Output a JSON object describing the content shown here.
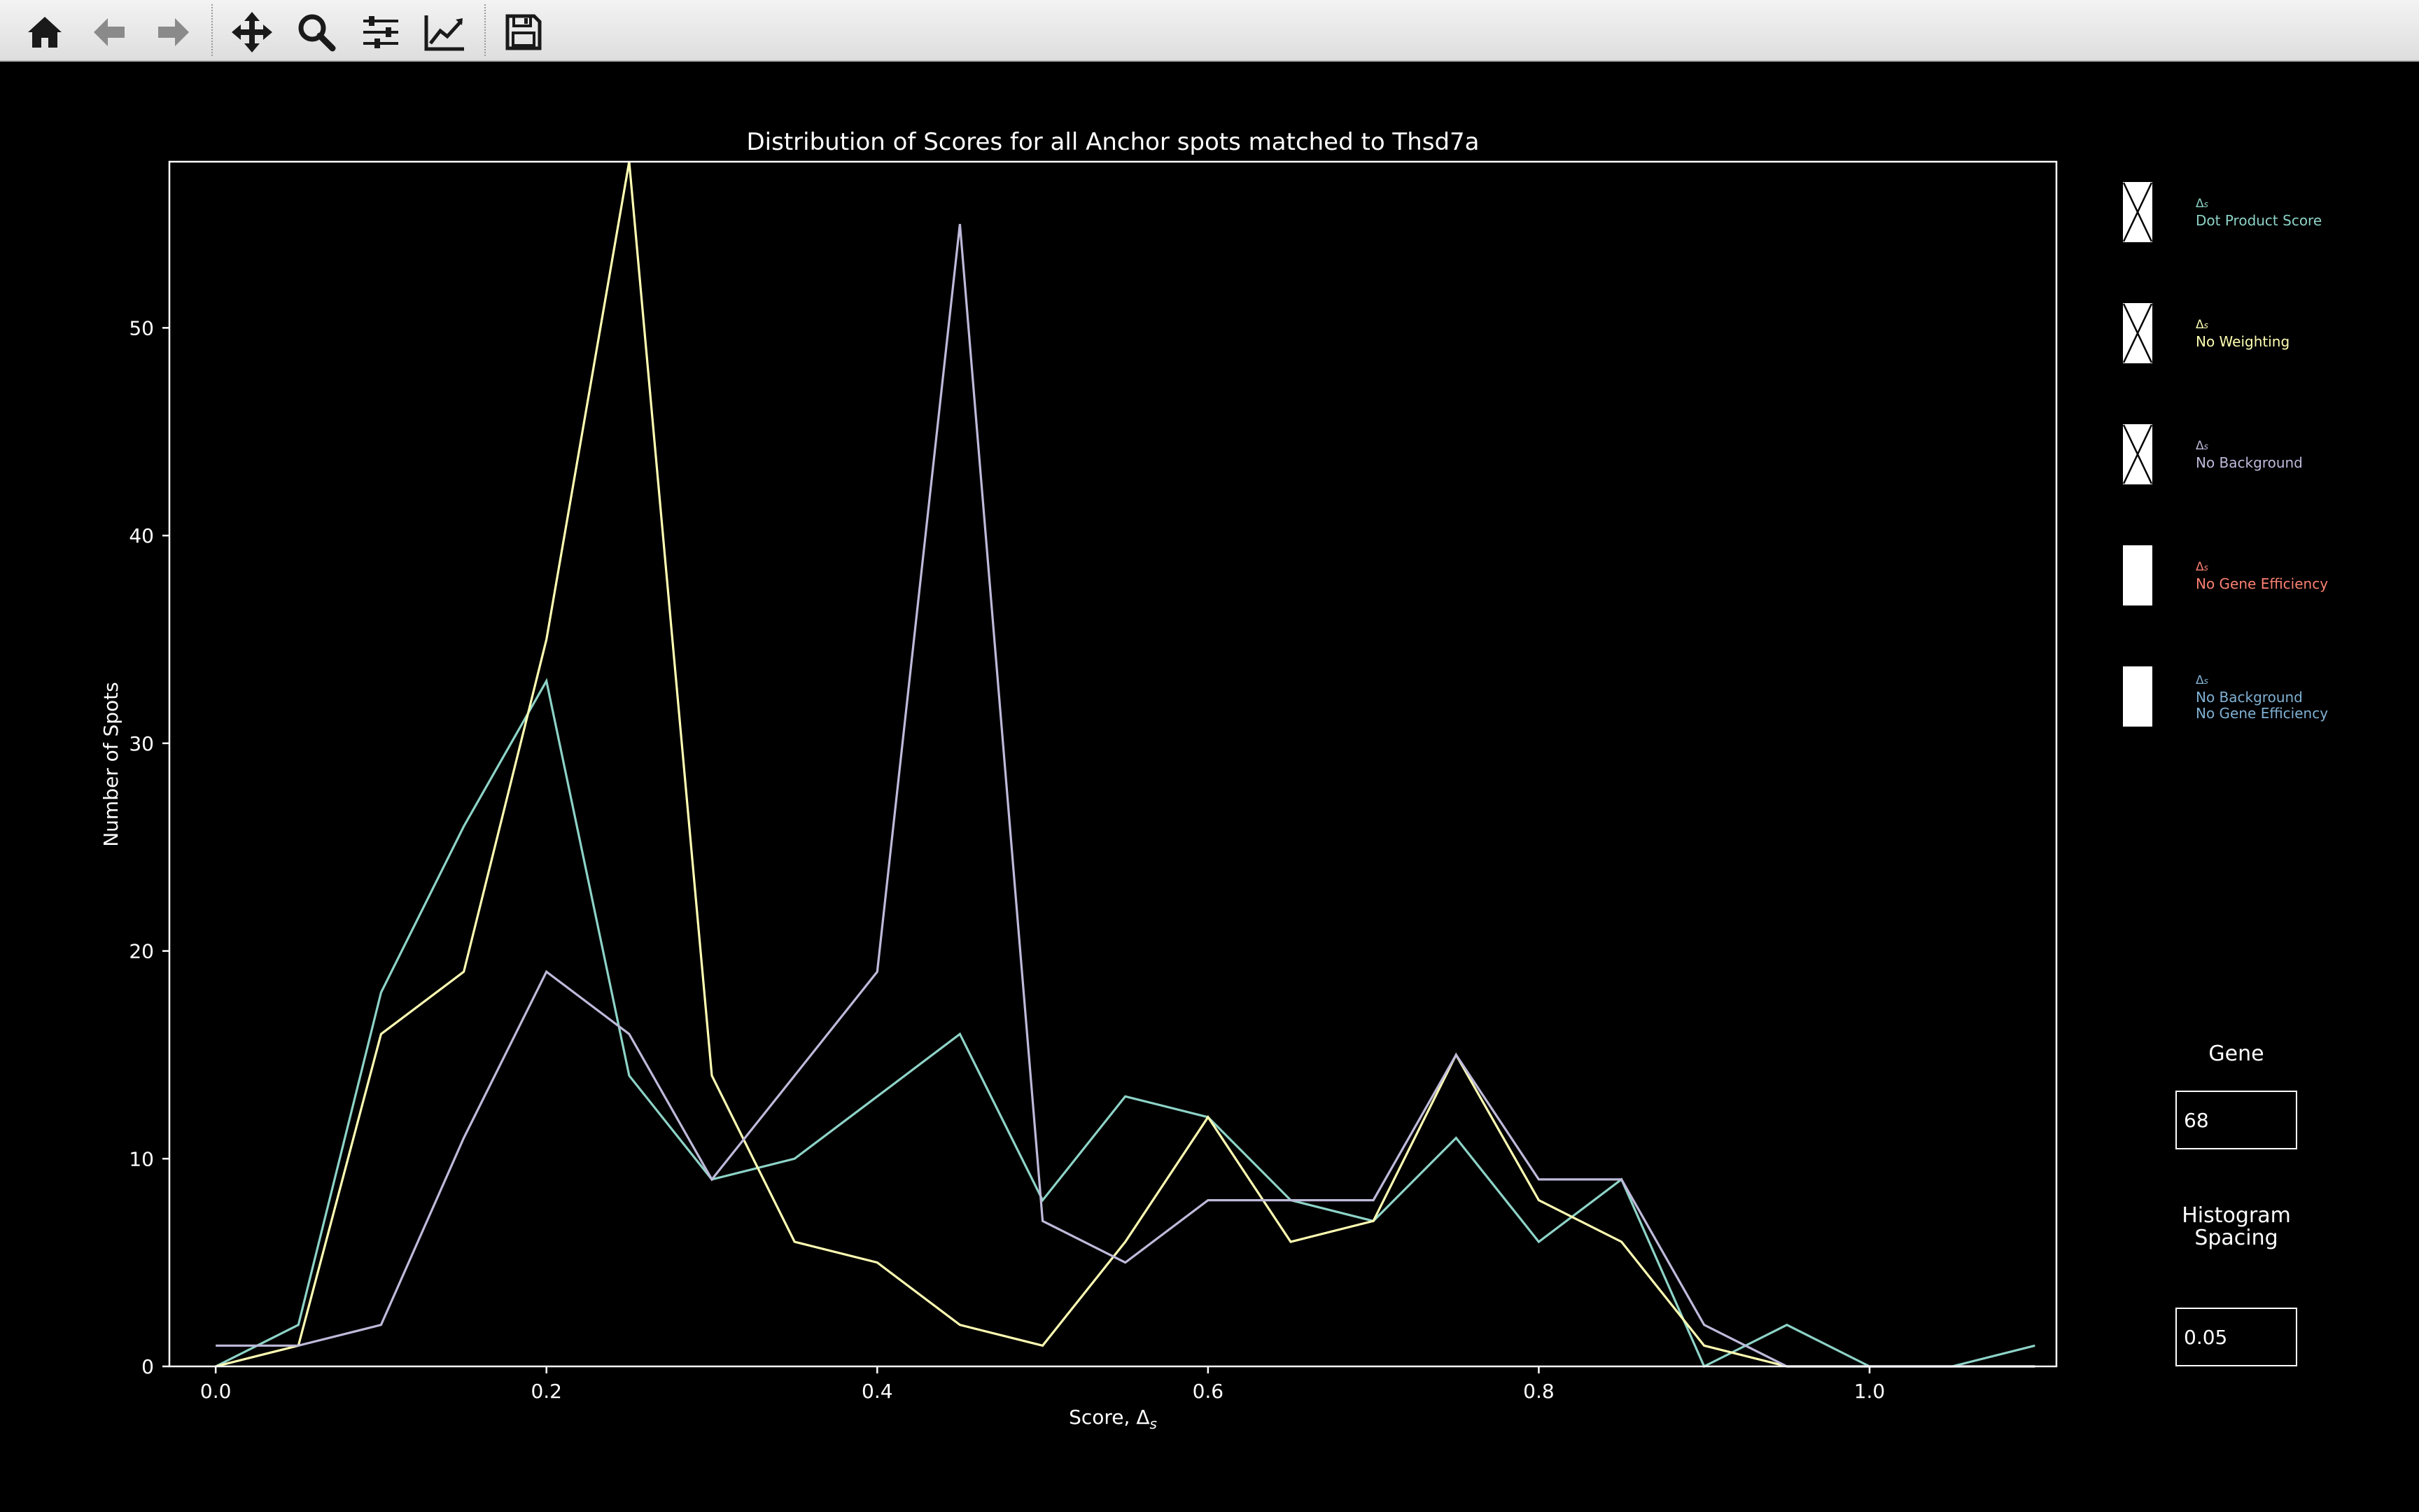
{
  "toolbar": {
    "buttons": [
      {
        "name": "home-icon",
        "label": "Home"
      },
      {
        "name": "back-icon",
        "label": "Back"
      },
      {
        "name": "forward-icon",
        "label": "Forward"
      },
      {
        "name": "pan-icon",
        "label": "Pan"
      },
      {
        "name": "zoom-icon",
        "label": "Zoom"
      },
      {
        "name": "configure-subplots-icon",
        "label": "Subplots"
      },
      {
        "name": "edit-axis-icon",
        "label": "Customize"
      },
      {
        "name": "save-icon",
        "label": "Save"
      }
    ],
    "icon_color": "#1a1a1a",
    "disabled_color": "#8a8a8a"
  },
  "chart_data": {
    "type": "line",
    "title": "Distribution of Scores for all Anchor spots matched to Thsd7a",
    "xlabel": "Score, Δs",
    "ylabel": "Number of Spots",
    "xlim": [
      -0.028,
      1.113
    ],
    "ylim": [
      0,
      58
    ],
    "x_ticks": [
      "0.0",
      "0.2",
      "0.4",
      "0.6",
      "0.8",
      "1.0"
    ],
    "y_ticks": [
      "0",
      "10",
      "20",
      "30",
      "40",
      "50"
    ],
    "x": [
      0.0,
      0.05,
      0.1,
      0.15,
      0.2,
      0.25,
      0.3,
      0.35,
      0.4,
      0.45,
      0.5,
      0.55,
      0.6,
      0.65,
      0.7,
      0.75,
      0.8,
      0.85,
      0.9,
      0.95,
      1.0,
      1.05,
      1.1
    ],
    "series": [
      {
        "name": "Dot Product Score",
        "color": "#8dd3c7",
        "values": [
          0,
          2,
          18,
          26,
          33,
          14,
          9,
          10,
          13,
          16,
          8,
          13,
          12,
          8,
          7,
          11,
          6,
          9,
          0,
          2,
          0,
          0,
          1
        ]
      },
      {
        "name": "No Weighting",
        "color": "#ffffb3",
        "values": [
          0,
          1,
          16,
          19,
          35,
          58,
          14,
          6,
          5,
          2,
          1,
          6,
          12,
          6,
          7,
          15,
          8,
          6,
          1,
          0,
          0,
          0,
          0
        ]
      },
      {
        "name": "No Background",
        "color": "#bebada",
        "values": [
          1,
          1,
          2,
          11,
          19,
          16,
          9,
          14,
          19,
          55,
          7,
          5,
          8,
          8,
          8,
          15,
          9,
          9,
          2,
          0,
          0,
          0,
          0
        ]
      }
    ],
    "legend": [
      {
        "delta": "Δs",
        "text": [
          "Dot Product Score"
        ],
        "color": "#8dd3c7",
        "checked": true
      },
      {
        "delta": "Δs",
        "text": [
          "No Weighting"
        ],
        "color": "#ffffb3",
        "checked": true
      },
      {
        "delta": "Δs",
        "text": [
          "No Background"
        ],
        "color": "#bebada",
        "checked": true
      },
      {
        "delta": "Δs",
        "text": [
          "No Gene Efficiency"
        ],
        "color": "#fb8072",
        "checked": false
      },
      {
        "delta": "Δs",
        "text": [
          "No Background",
          "No Gene Efficiency"
        ],
        "color": "#80b1d3",
        "checked": false
      }
    ],
    "grid": false,
    "legend_placement": "right"
  },
  "widgets": {
    "gene": {
      "title": "Gene",
      "value": "68"
    },
    "histogram": {
      "title_line1": "Histogram",
      "title_line2": "Spacing",
      "value": "0.05"
    }
  }
}
